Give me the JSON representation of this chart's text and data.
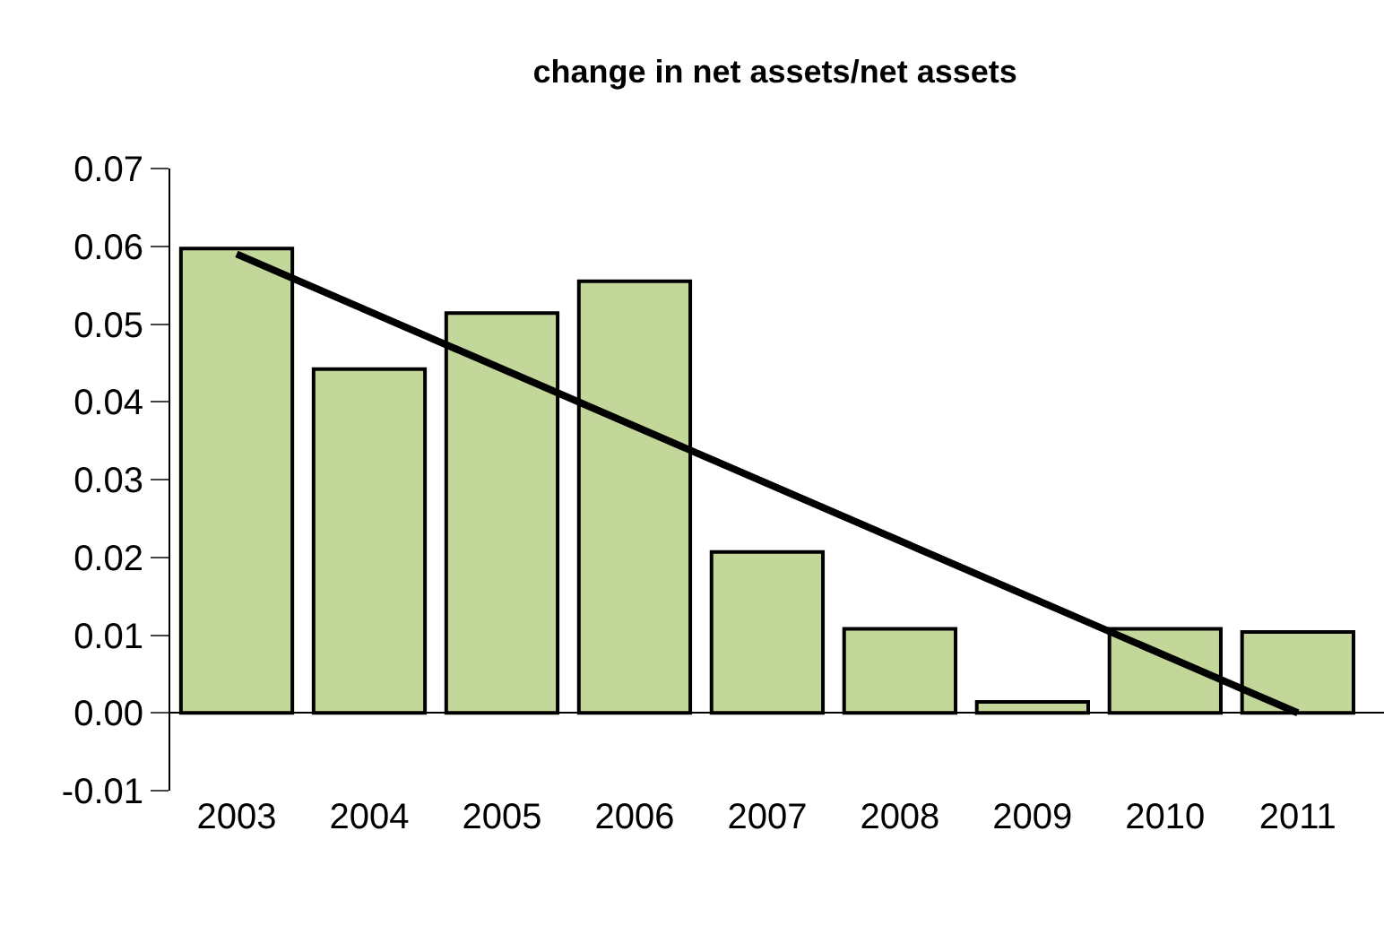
{
  "chart_data": {
    "type": "bar",
    "title": "change in net assets/net assets",
    "categories": [
      "2003",
      "2004",
      "2005",
      "2006",
      "2007",
      "2008",
      "2009",
      "2010",
      "2011"
    ],
    "series": [
      {
        "color": "#c4d79b",
        "values": [
          0.0597,
          0.0442,
          0.0514,
          0.0555,
          0.0207,
          0.0108,
          0.0014,
          0.0108,
          0.0104
        ]
      },
      {
        "type": "line",
        "color": "#000000",
        "values": [
          0.059,
          null,
          null,
          null,
          null,
          null,
          null,
          null,
          0.0
        ]
      }
    ],
    "ylim": [
      -0.01,
      0.07
    ],
    "yticks": [
      {
        "value": -0.01,
        "label": "-0.01"
      },
      {
        "value": 0,
        "label": "0.00"
      },
      {
        "value": 0.01,
        "label": "0.01"
      },
      {
        "value": 0.02,
        "label": "0.02"
      },
      {
        "value": 0.03,
        "label": "0.03"
      },
      {
        "value": 0.04,
        "label": "0.04"
      },
      {
        "value": 0.05,
        "label": "0.05"
      },
      {
        "value": 0.06,
        "label": "0.06"
      },
      {
        "value": 0.07,
        "label": "0.07"
      }
    ],
    "marker": "none",
    "line_style": "solid"
  }
}
